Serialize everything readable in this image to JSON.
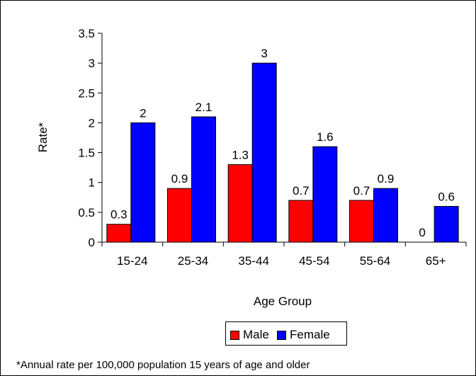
{
  "chart_data": {
    "type": "bar",
    "categories": [
      "15-24",
      "25-34",
      "35-44",
      "45-54",
      "55-64",
      "65+"
    ],
    "series": [
      {
        "name": "Male",
        "color": "#ff0000",
        "values": [
          0.3,
          0.9,
          1.3,
          0.7,
          0.7,
          0
        ],
        "labels": [
          "0.3",
          "0.9",
          "1.3",
          "0.7",
          "0.7",
          "0"
        ]
      },
      {
        "name": "Female",
        "color": "#0000ff",
        "values": [
          2,
          2.1,
          3,
          1.6,
          0.9,
          0.6
        ],
        "labels": [
          "2",
          "2.1",
          "3",
          "1.6",
          "0.9",
          "0.6"
        ]
      }
    ],
    "xlabel": "Age Group",
    "ylabel": "Rate*",
    "ylim": [
      0,
      3.5
    ],
    "yticks": [
      "0",
      "0.5",
      "1",
      "1.5",
      "2",
      "2.5",
      "3",
      "3.5"
    ],
    "legend_position": "bottom",
    "grid": false
  },
  "footnote": "*Annual rate per 100,000 population 15 years of age and older"
}
